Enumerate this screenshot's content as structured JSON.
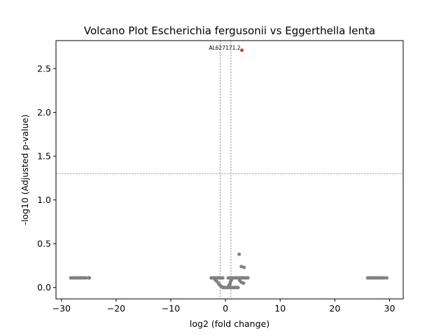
{
  "chart_data": {
    "type": "scatter",
    "title": "Volcano Plot Escherichia fergusonii vs Eggerthella lenta",
    "xlabel": "log2 (fold change)",
    "ylabel": "-log10 (Adjusted p-value)",
    "xlim": [
      -31,
      32.5
    ],
    "ylim": [
      -0.13,
      2.82
    ],
    "xticks": [
      -30,
      -20,
      -10,
      0,
      10,
      20,
      30
    ],
    "yticks": [
      0.0,
      0.5,
      1.0,
      1.5,
      2.0,
      2.5
    ],
    "xtick_labels": [
      "−30",
      "−20",
      "−10",
      "0",
      "10",
      "20",
      "30"
    ],
    "ytick_labels": [
      "0.0",
      "0.5",
      "1.0",
      "1.5",
      "2.0",
      "2.5"
    ],
    "thresholds": {
      "vertical": [
        -1,
        1
      ],
      "horizontal": 1.3
    },
    "grid": false,
    "colors": {
      "not_significant": "#808080",
      "significant": "#ff2a2a",
      "threshold_line": "#808080"
    },
    "annotations": [
      {
        "text": "AL627171.2",
        "x": 3.0,
        "y": 2.71
      }
    ],
    "series": [
      {
        "color": "#ff2a2a",
        "points": [
          [
            3.0,
            2.71
          ]
        ]
      },
      {
        "color": "#808080",
        "points": [
          [
            -28.3,
            0.11
          ],
          [
            -28.0,
            0.11
          ],
          [
            -27.7,
            0.11
          ],
          [
            -27.4,
            0.11
          ],
          [
            -27.1,
            0.11
          ],
          [
            -26.8,
            0.11
          ],
          [
            -26.5,
            0.11
          ],
          [
            -26.2,
            0.11
          ],
          [
            -25.9,
            0.11
          ],
          [
            -25.6,
            0.11
          ],
          [
            -25.1,
            0.11
          ],
          [
            -24.9,
            0.11
          ],
          [
            26.0,
            0.11
          ],
          [
            26.3,
            0.11
          ],
          [
            26.6,
            0.11
          ],
          [
            26.9,
            0.11
          ],
          [
            27.2,
            0.11
          ],
          [
            27.5,
            0.11
          ],
          [
            27.8,
            0.11
          ],
          [
            28.1,
            0.11
          ],
          [
            28.4,
            0.11
          ],
          [
            28.7,
            0.11
          ],
          [
            29.0,
            0.11
          ],
          [
            29.5,
            0.11
          ],
          [
            -2.6,
            0.11
          ],
          [
            -2.3,
            0.11
          ],
          [
            -2.0,
            0.11
          ],
          [
            -1.7,
            0.11
          ],
          [
            -1.4,
            0.11
          ],
          [
            -1.1,
            0.11
          ],
          [
            -0.8,
            0.11
          ],
          [
            -0.5,
            0.11
          ],
          [
            -1.9,
            0.09
          ],
          [
            -1.6,
            0.07
          ],
          [
            -1.3,
            0.05
          ],
          [
            -1.1,
            0.03
          ],
          [
            -0.9,
            0.02
          ],
          [
            -0.7,
            0.01
          ],
          [
            -0.5,
            0.0
          ],
          [
            -0.3,
            0.0
          ],
          [
            -0.1,
            0.0
          ],
          [
            0.1,
            0.0
          ],
          [
            0.3,
            0.0
          ],
          [
            0.5,
            0.0
          ],
          [
            0.7,
            0.0
          ],
          [
            0.9,
            0.0
          ],
          [
            1.1,
            0.0
          ],
          [
            1.3,
            0.0
          ],
          [
            1.5,
            0.0
          ],
          [
            1.7,
            0.0
          ],
          [
            1.9,
            0.0
          ],
          [
            2.1,
            0.0
          ],
          [
            2.3,
            0.0
          ],
          [
            0.6,
            0.02
          ],
          [
            0.8,
            0.04
          ],
          [
            0.9,
            0.06
          ],
          [
            1.0,
            0.08
          ],
          [
            0.7,
            0.03
          ],
          [
            1.1,
            0.09
          ],
          [
            0.5,
            0.11
          ],
          [
            0.8,
            0.11
          ],
          [
            1.1,
            0.11
          ],
          [
            1.4,
            0.11
          ],
          [
            1.7,
            0.11
          ],
          [
            2.0,
            0.11
          ],
          [
            2.3,
            0.11
          ],
          [
            2.6,
            0.11
          ],
          [
            2.9,
            0.11
          ],
          [
            3.2,
            0.11
          ],
          [
            3.5,
            0.11
          ],
          [
            3.8,
            0.11
          ],
          [
            4.1,
            0.11
          ],
          [
            2.6,
            0.08
          ],
          [
            2.9,
            0.06
          ],
          [
            3.3,
            0.05
          ],
          [
            2.5,
            0.38
          ],
          [
            2.9,
            0.24
          ],
          [
            3.4,
            0.23
          ]
        ]
      }
    ]
  }
}
